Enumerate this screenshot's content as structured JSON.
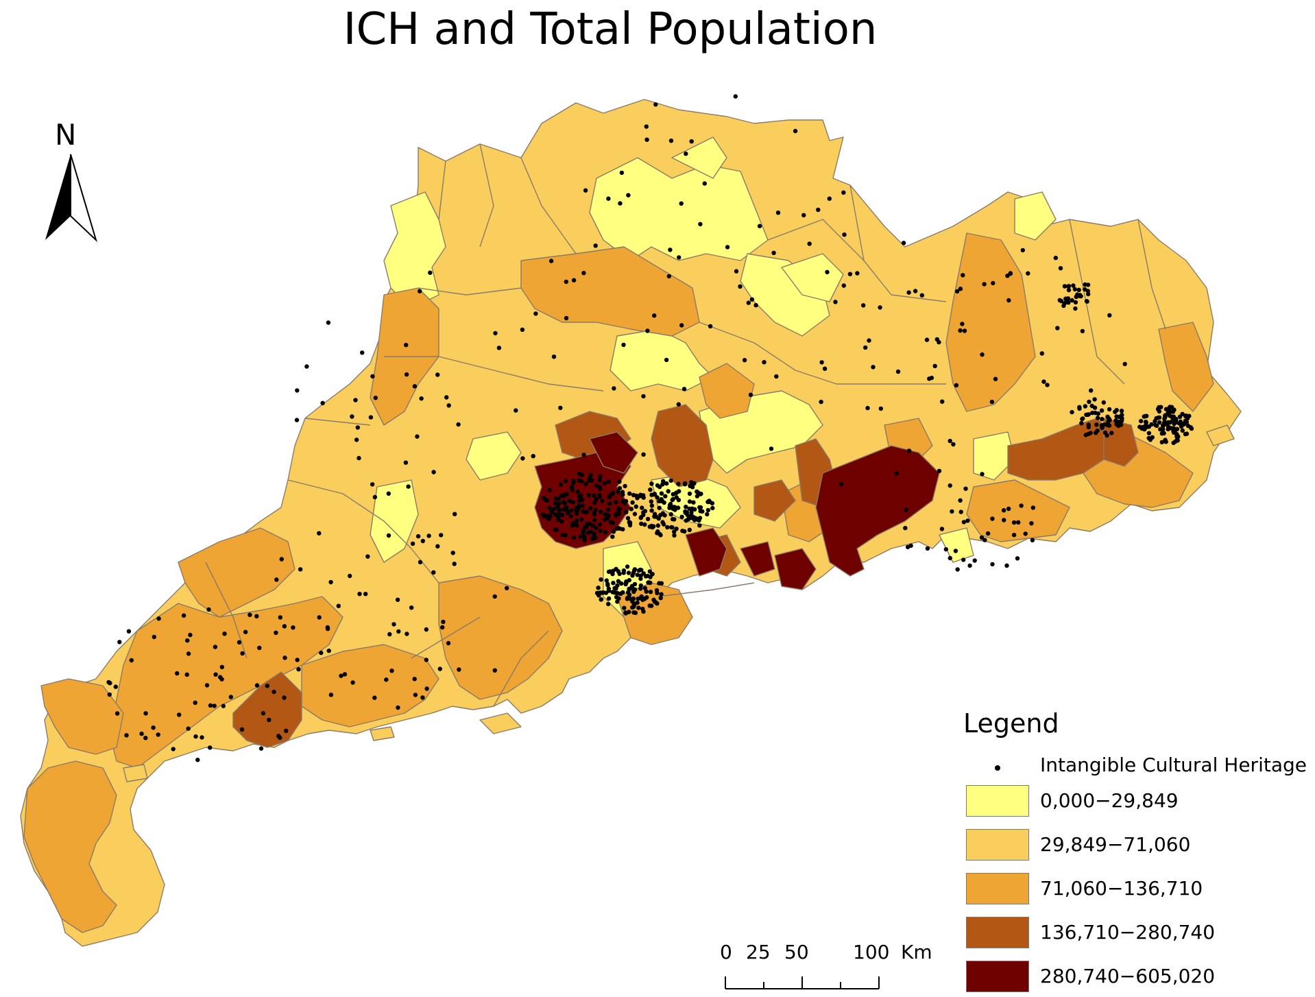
{
  "title": "ICH and Total Population",
  "north_label": "N",
  "legend": {
    "title": "Legend",
    "point_item": "Intangible Cultural Heritage",
    "classes": [
      {
        "label": "0,000−29,849",
        "color": "#FFFF80"
      },
      {
        "label": "29,849−71,060",
        "color": "#F9CE5C"
      },
      {
        "label": "71,060−136,710",
        "color": "#EFA534"
      },
      {
        "label": "136,710−280,740",
        "color": "#B35714"
      },
      {
        "label": "280,740−605,020",
        "color": "#6E0000"
      }
    ]
  },
  "scale": {
    "ticks": [
      "0",
      "25",
      "50",
      "100"
    ],
    "unit": "Km"
  },
  "colors": {
    "boundary": "#8a7a68",
    "point": "#000000"
  }
}
